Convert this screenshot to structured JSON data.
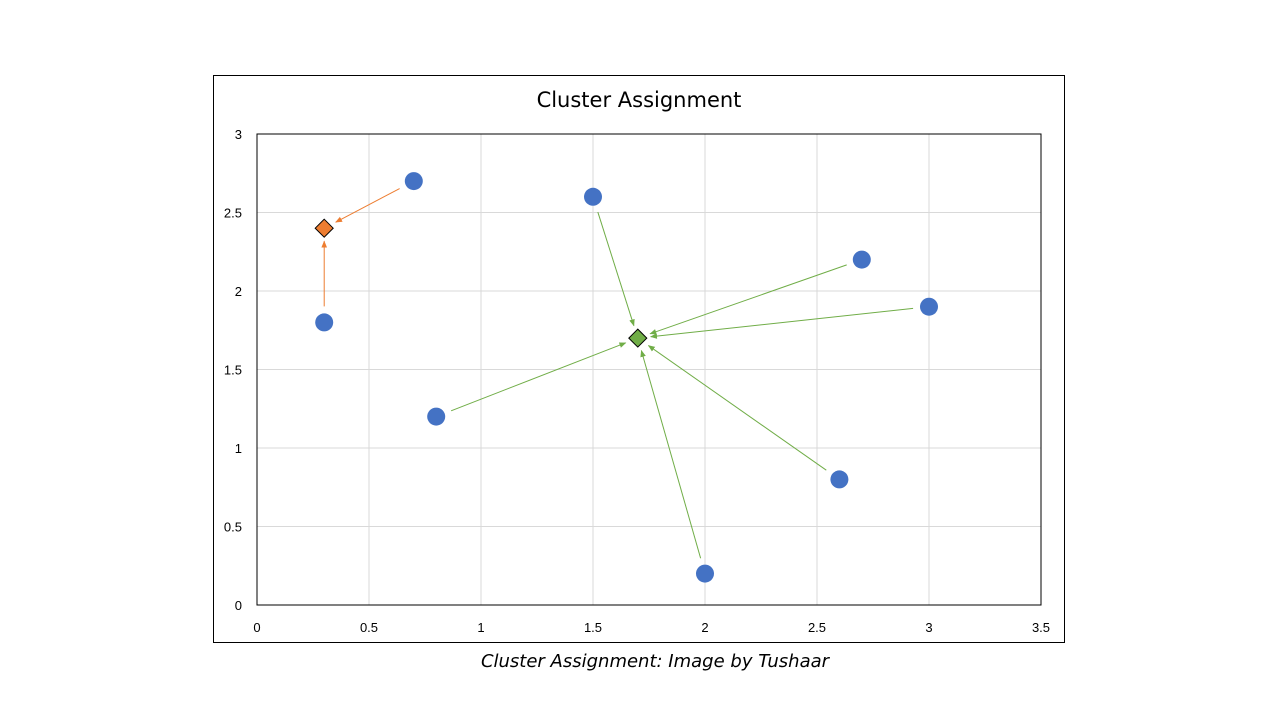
{
  "caption": "Cluster Assignment: Image by Tushaar",
  "chart_data": {
    "type": "scatter",
    "title": "Cluster Assignment",
    "xlabel": "",
    "ylabel": "",
    "xlim": [
      0,
      3.5
    ],
    "ylim": [
      0,
      3
    ],
    "x_ticks": [
      "0",
      "0.5",
      "1",
      "1.5",
      "2",
      "2.5",
      "3",
      "3.5"
    ],
    "y_ticks": [
      "0",
      "0.5",
      "1",
      "1.5",
      "2",
      "2.5",
      "3"
    ],
    "grid": true,
    "legend": "none",
    "points": [
      {
        "x": 0.3,
        "y": 1.8,
        "cluster": "orange"
      },
      {
        "x": 0.7,
        "y": 2.7,
        "cluster": "orange"
      },
      {
        "x": 0.8,
        "y": 1.2,
        "cluster": "green"
      },
      {
        "x": 1.5,
        "y": 2.6,
        "cluster": "green"
      },
      {
        "x": 2.0,
        "y": 0.2,
        "cluster": "green"
      },
      {
        "x": 2.6,
        "y": 0.8,
        "cluster": "green"
      },
      {
        "x": 2.7,
        "y": 2.2,
        "cluster": "green"
      },
      {
        "x": 3.0,
        "y": 1.9,
        "cluster": "green"
      }
    ],
    "centroids": [
      {
        "name": "orange",
        "x": 0.3,
        "y": 2.4,
        "color": "#ED7D31"
      },
      {
        "name": "green",
        "x": 1.7,
        "y": 1.7,
        "color": "#70AD47"
      }
    ],
    "colors": {
      "point": "#4472C4",
      "grid": "#D9D9D9",
      "axis": "#000000"
    }
  }
}
